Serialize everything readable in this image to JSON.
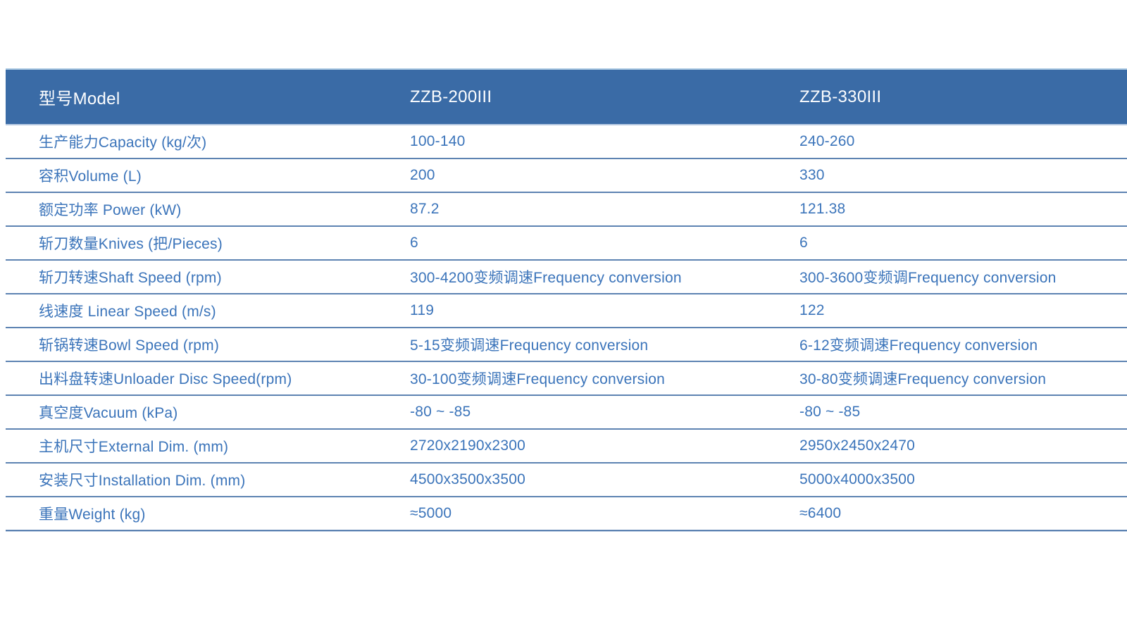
{
  "colors": {
    "header_bg": "#3A6BA6",
    "header_text": "#FDFEFF",
    "body_text": "#3B74BA",
    "divider_dark": "#5D83B2",
    "divider_light": "#C9D7EA",
    "header_edge_top": "#AECBE4",
    "header_edge_bottom": "#B9CBE2",
    "page_bg": "#FFFFFF"
  },
  "table": {
    "header": {
      "model_label": "型号Model",
      "model_1": "ZZB-200III",
      "model_2": "ZZB-330III"
    },
    "rows": [
      {
        "label": "生产能力Capacity (kg/次)",
        "zzb200": "100-140",
        "zzb330": "240-260"
      },
      {
        "label": "容积Volume (L)",
        "zzb200": "200",
        "zzb330": "330"
      },
      {
        "label": "额定功率 Power (kW)",
        "zzb200": "87.2",
        "zzb330": "121.38"
      },
      {
        "label": "斩刀数量Knives (把/Pieces)",
        "zzb200": "6",
        "zzb330": "6"
      },
      {
        "label": "斩刀转速Shaft Speed (rpm)",
        "zzb200": "300-4200变频调速Frequency conversion",
        "zzb330": "300-3600变频调Frequency conversion"
      },
      {
        "label": "线速度 Linear Speed (m/s)",
        "zzb200": "119",
        "zzb330": "122"
      },
      {
        "label": "斩锅转速Bowl Speed (rpm)",
        "zzb200": "5-15变频调速Frequency conversion",
        "zzb330": "6-12变频调速Frequency conversion"
      },
      {
        "label": "出料盘转速Unloader Disc Speed(rpm)",
        "zzb200": "30-100变频调速Frequency conversion",
        "zzb330": "30-80变频调速Frequency conversion"
      },
      {
        "label": "真空度Vacuum (kPa)",
        "zzb200": "-80 ~ -85",
        "zzb330": "-80 ~ -85"
      },
      {
        "label": "主机尺寸External Dim. (mm)",
        "zzb200": "2720x2190x2300",
        "zzb330": "2950x2450x2470"
      },
      {
        "label": "安装尺寸Installation Dim. (mm)",
        "zzb200": "4500x3500x3500",
        "zzb330": "5000x4000x3500"
      },
      {
        "label": "重量Weight (kg)",
        "zzb200": "≈5000",
        "zzb330": "≈6400"
      }
    ]
  }
}
